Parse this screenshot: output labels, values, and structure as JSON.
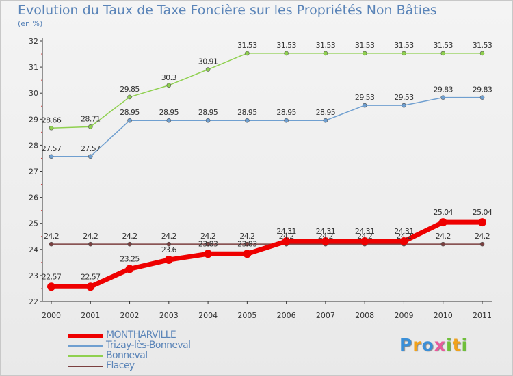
{
  "chart_data": {
    "type": "line",
    "title": "Evolution du Taux de Taxe Foncière sur les Propriétés Non Bâties",
    "ylabel": "(en %)",
    "xlabel": "",
    "categories": [
      "2000",
      "2001",
      "2002",
      "2003",
      "2004",
      "2005",
      "2006",
      "2007",
      "2008",
      "2009",
      "2010",
      "2011"
    ],
    "ylim": [
      22,
      32
    ],
    "yticks": [
      22,
      23,
      24,
      25,
      26,
      27,
      28,
      29,
      30,
      31,
      32
    ],
    "grid": false,
    "legend_position": "bottom-left",
    "series": [
      {
        "name": "Flacey",
        "color": "#7b3f3f",
        "width": "thin",
        "values": [
          24.2,
          24.2,
          24.2,
          24.2,
          24.2,
          24.2,
          24.2,
          24.2,
          24.2,
          24.2,
          24.2,
          24.2
        ],
        "labels": [
          "24.2",
          "24.2",
          "24.2",
          "24.2",
          "24.2",
          "24.2",
          "24.2",
          "24.2",
          "24.2",
          "24.2",
          "24.2",
          "24.2"
        ]
      },
      {
        "name": "Trizay-lès-Bonneval",
        "color": "#6f9fd0",
        "width": "thin",
        "values": [
          27.57,
          27.57,
          28.95,
          28.95,
          28.95,
          28.95,
          28.95,
          28.95,
          29.53,
          29.53,
          29.83,
          29.83
        ],
        "labels": [
          "27.57",
          "27.57",
          "28.95",
          "28.95",
          "28.95",
          "28.95",
          "28.95",
          "28.95",
          "29.53",
          "29.53",
          "29.83",
          "29.83"
        ]
      },
      {
        "name": "Bonneval",
        "color": "#8fd04f",
        "width": "thin",
        "values": [
          28.66,
          28.71,
          29.85,
          30.3,
          30.91,
          31.53,
          31.53,
          31.53,
          31.53,
          31.53,
          31.53,
          31.53
        ],
        "labels": [
          "28.66",
          "28.71",
          "29.85",
          "30.3",
          "30.91",
          "31.53",
          "31.53",
          "31.53",
          "31.53",
          "31.53",
          "31.53",
          "31.53"
        ]
      },
      {
        "name": "MONTHARVILLE",
        "color": "#ee0000",
        "width": "thick",
        "values": [
          22.57,
          22.57,
          23.25,
          23.6,
          23.83,
          23.83,
          24.31,
          24.31,
          24.31,
          24.31,
          25.04,
          25.04
        ],
        "labels": [
          "22.57",
          "22.57",
          "23.25",
          "23.6",
          "23.83",
          "23.83",
          "24.31",
          "24.31",
          "24.31",
          "24.31",
          "25.04",
          "25.04"
        ]
      }
    ],
    "legend_order": [
      "MONTHARVILLE",
      "Trizay-lès-Bonneval",
      "Bonneval",
      "Flacey"
    ]
  },
  "logo": {
    "letters": [
      "P",
      "r",
      "o",
      "x",
      "i",
      "t",
      "i"
    ],
    "colors": [
      "#3a8fd8",
      "#f2a21b",
      "#3a8fd8",
      "#e85b9c",
      "#6fbf3a",
      "#f2a21b",
      "#6fbf3a"
    ]
  }
}
